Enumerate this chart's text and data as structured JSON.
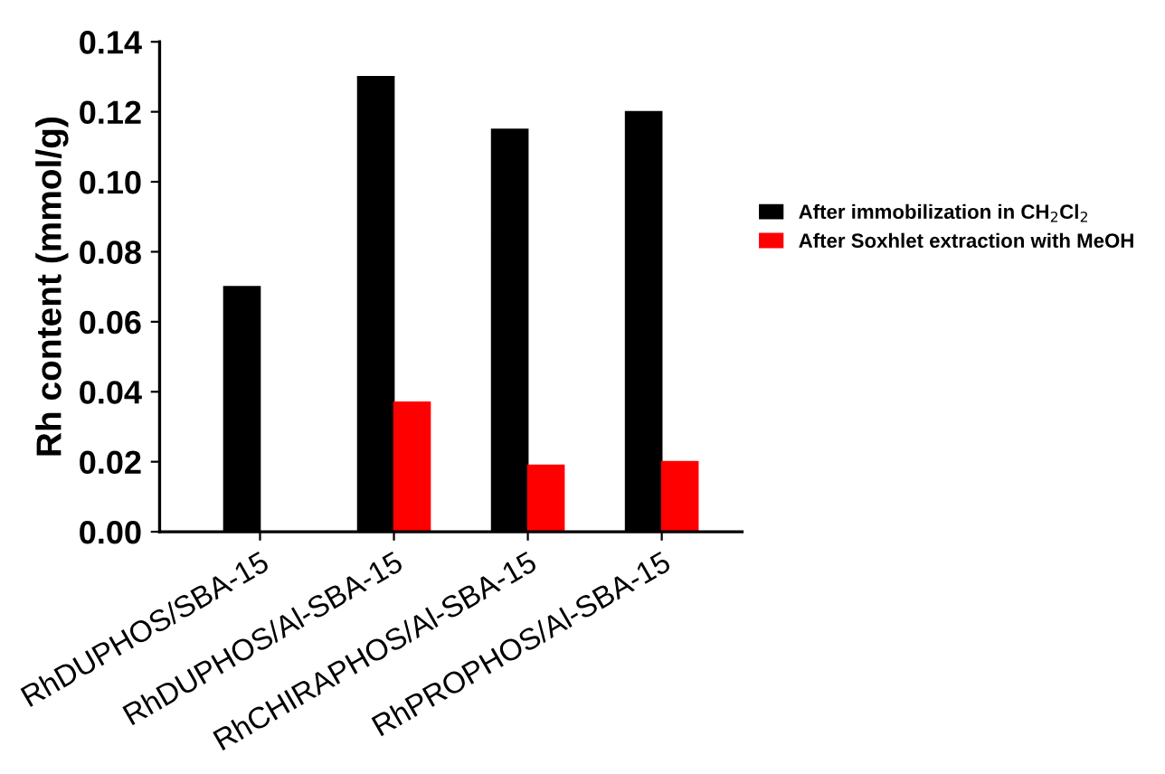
{
  "chart_data": {
    "type": "bar",
    "ylabel": "Rh content (mmol/g)",
    "categories": [
      "RhDUPHOS/SBA-15",
      "RhDUPHOS/Al-SBA-15",
      "RhCHIRAPHOS/Al-SBA-15",
      "RhPROPHOS/Al-SBA-15"
    ],
    "series": [
      {
        "name": "After immobilization in CH$_{2}$Cl$_{2}$",
        "color": "#000000",
        "values": [
          0.07,
          0.13,
          0.115,
          0.12
        ]
      },
      {
        "name": "After Soxhlet extraction with MeOH",
        "color": "#ff0000",
        "values": [
          null,
          0.037,
          0.019,
          0.02
        ]
      }
    ],
    "ylim": [
      0,
      0.14
    ],
    "yticks": [
      {
        "value": 0,
        "label": "0.00"
      },
      {
        "value": 0.02,
        "label": "0.02"
      },
      {
        "value": 0.04,
        "label": "0.04"
      },
      {
        "value": 0.06,
        "label": "0.06"
      },
      {
        "value": 0.08,
        "label": "0.08"
      },
      {
        "value": 0.1,
        "label": "0.10"
      },
      {
        "value": 0.12,
        "label": "0.12"
      },
      {
        "value": 0.14,
        "label": "0.14"
      }
    ],
    "grid": false,
    "legend": "right"
  }
}
